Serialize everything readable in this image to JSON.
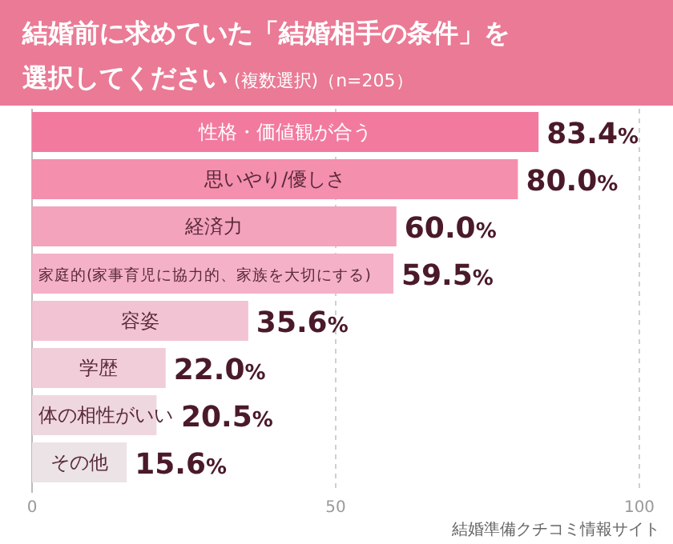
{
  "chart_data": {
    "type": "bar",
    "orientation": "horizontal",
    "title": "結婚前に求めていた「結婚相手の条件」を選択してください",
    "subtitle": "(複数選択)（n=205）",
    "categories": [
      "性格・価値観が合う",
      "思いやり/優しさ",
      "経済力",
      "家庭的(家事育児に協力的、家族を大切にする)",
      "容姿",
      "学歴",
      "体の相性がいい",
      "その他"
    ],
    "values": [
      83.4,
      80.0,
      60.0,
      59.5,
      35.6,
      22.0,
      20.5,
      15.6
    ],
    "value_labels": [
      "83.4%",
      "80.0%",
      "60.0%",
      "59.5%",
      "35.6%",
      "22.0%",
      "20.5%",
      "15.6%"
    ],
    "colors": [
      "#f27a9e",
      "#f48fae",
      "#f4a3bd",
      "#f5b1c8",
      "#f2c3d3",
      "#f1cdda",
      "#efd7e0",
      "#ebe3e6"
    ],
    "xlim": [
      0,
      100
    ],
    "xticks": [
      0,
      50,
      100
    ],
    "grid": "x",
    "annotations": [
      "結婚準備クチコミ情報サイト"
    ]
  }
}
